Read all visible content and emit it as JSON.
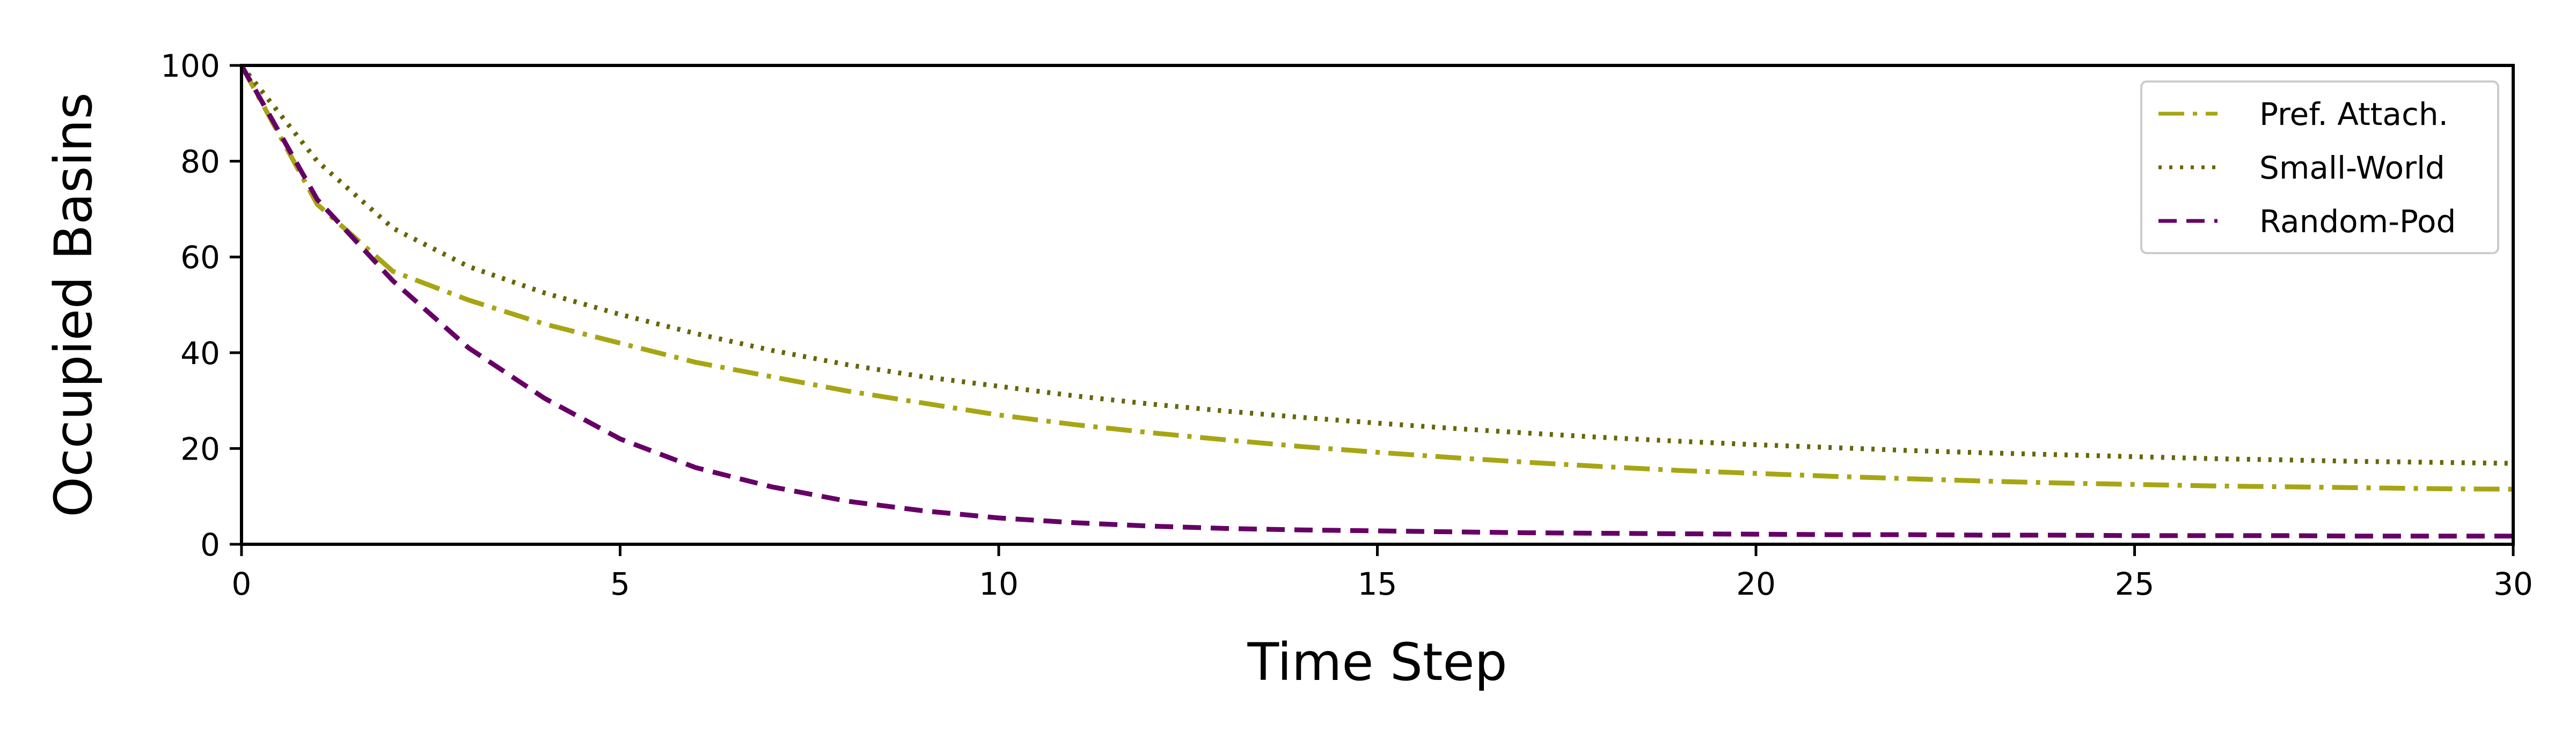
{
  "chart_data": {
    "type": "line",
    "title": "",
    "xlabel": "Time Step",
    "ylabel": "Occupied Basins",
    "xlim": [
      0,
      30
    ],
    "ylim": [
      0,
      100
    ],
    "xticks": [
      0,
      5,
      10,
      15,
      20,
      25,
      30
    ],
    "yticks": [
      0,
      20,
      40,
      60,
      80,
      100
    ],
    "grid": false,
    "legend_position": "top-right",
    "x": [
      0,
      1,
      2,
      3,
      4,
      5,
      6,
      7,
      8,
      9,
      10,
      11,
      12,
      13,
      14,
      15,
      16,
      17,
      18,
      19,
      20,
      21,
      22,
      23,
      24,
      25,
      26,
      27,
      28,
      29,
      30
    ],
    "series": [
      {
        "name": "Pref. Attach.",
        "color": "#a8a514",
        "dash": "dashdot",
        "values": [
          100,
          71,
          57,
          51,
          46,
          42,
          38,
          35,
          32,
          29.5,
          27,
          25,
          23.3,
          21.8,
          20.4,
          19.2,
          18.1,
          17.1,
          16.2,
          15.4,
          14.8,
          14.2,
          13.7,
          13.2,
          12.8,
          12.5,
          12.2,
          12,
          11.8,
          11.6,
          11.5
        ]
      },
      {
        "name": "Small-World",
        "color": "#666600",
        "dash": "dotted",
        "values": [
          100,
          80,
          66,
          58,
          52.5,
          48,
          44,
          40.5,
          37.5,
          35,
          33,
          31,
          29.3,
          27.8,
          26.5,
          25.3,
          24.2,
          23.2,
          22.3,
          21.5,
          20.8,
          20.2,
          19.6,
          19.1,
          18.7,
          18.3,
          17.9,
          17.6,
          17.3,
          17.1,
          16.9
        ]
      },
      {
        "name": "Random-Pod",
        "color": "#660066",
        "dash": "dashed",
        "values": [
          100,
          72,
          55,
          41,
          30.5,
          22,
          16,
          12,
          9,
          7,
          5.5,
          4.5,
          3.8,
          3.3,
          3,
          2.8,
          2.6,
          2.4,
          2.3,
          2.2,
          2.1,
          2,
          2,
          1.9,
          1.9,
          1.8,
          1.8,
          1.8,
          1.7,
          1.7,
          1.7
        ]
      }
    ]
  }
}
